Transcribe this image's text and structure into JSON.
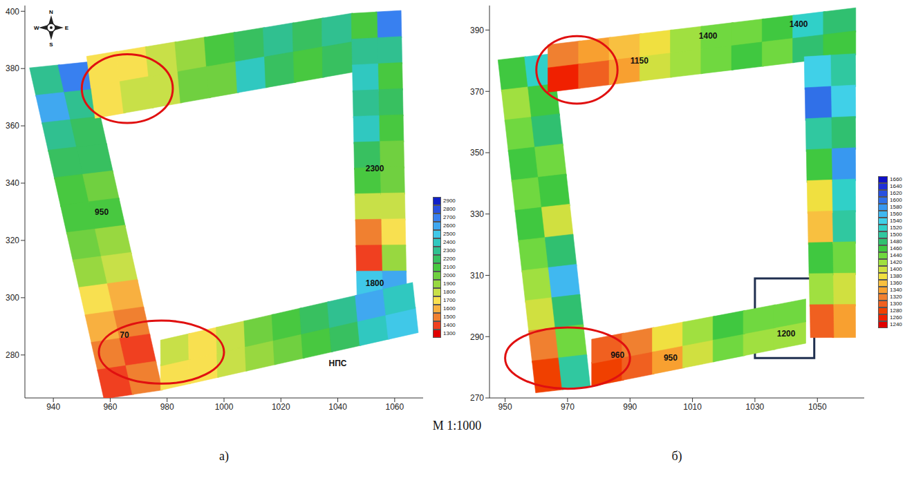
{
  "scale_label": "M 1:1000",
  "chart_data": [
    {
      "type": "heatmap",
      "label": "а)",
      "xlim": [
        930,
        1070
      ],
      "xticks": [
        940,
        960,
        980,
        1000,
        1020,
        1040,
        1060
      ],
      "ylim": [
        265,
        402
      ],
      "yticks": [
        280,
        300,
        320,
        340,
        360,
        380,
        400
      ],
      "compass": [
        "N",
        "E",
        "S",
        "W"
      ],
      "colorbar": {
        "range": [
          1300,
          2900
        ],
        "ticks": [
          1300,
          1400,
          1500,
          1600,
          1700,
          1800,
          1900,
          2000,
          2100,
          2200,
          2300,
          2400,
          2500,
          2600,
          2700,
          2800,
          2900
        ],
        "colors": [
          "#e00000",
          "#f04020",
          "#f08030",
          "#f8b040",
          "#f8e050",
          "#c8e048",
          "#98d840",
          "#70d040",
          "#48c840",
          "#38c060",
          "#30c090",
          "#30c8c0",
          "#40c8e8",
          "#40a8f0",
          "#3880f0",
          "#2850e0",
          "#1020c8"
        ]
      },
      "strips": [
        {
          "outer": [
            [
              932,
              380
            ],
            [
              958,
              265
            ]
          ],
          "inner": [
            [
              952,
              382
            ],
            [
              978,
              268
            ]
          ],
          "cells": [
            [
              2300,
              2600,
              2300,
              2200,
              2100,
              2100,
              2000,
              1900,
              1700,
              1600,
              1500,
              1400
            ],
            [
              2700,
              2300,
              2200,
              2200,
              2000,
              2100,
              1900,
              1800,
              1600,
              1500,
              1400,
              1500
            ]
          ]
        },
        {
          "outer": [
            [
              952,
              384
            ],
            [
              1045,
              399
            ]
          ],
          "inner": [
            [
              955,
              363
            ],
            [
              1045,
              379
            ]
          ],
          "cells": [
            [
              1700,
              1700,
              1800,
              1900,
              2100,
              2200,
              2300,
              2200,
              2300
            ],
            [
              1700,
              1800,
              1800,
              2000,
              2000,
              2400,
              2200,
              2100,
              2200
            ]
          ]
        },
        {
          "outer": [
            [
              1062,
              400
            ],
            [
              1064,
              300
            ]
          ],
          "inner": [
            [
              1045,
              399
            ],
            [
              1047,
              300
            ]
          ],
          "cells": [
            [
              2700,
              2300,
              2100,
              2200,
              2100,
              2000,
              2000,
              1800,
              1700,
              1900,
              2600
            ],
            [
              2100,
              2300,
              2400,
              2300,
              2400,
              2200,
              2100,
              1800,
              1500,
              1400,
              2500
            ]
          ]
        },
        {
          "outer": [
            [
              978,
              268
            ],
            [
              1068,
              288
            ]
          ],
          "inner": [
            [
              978,
              285
            ],
            [
              1066,
              305
            ]
          ],
          "cells": [
            [
              1700,
              1700,
              1800,
              1900,
              2000,
              2100,
              2200,
              2400,
              2500
            ],
            [
              1800,
              1700,
              1800,
              2000,
              2100,
              2200,
              2300,
              2600,
              2400
            ]
          ]
        }
      ],
      "annotations": [
        {
          "x": 957,
          "y": 330,
          "text": "950"
        },
        {
          "x": 965,
          "y": 287,
          "text": "70"
        },
        {
          "x": 1053,
          "y": 345,
          "text": "2300"
        },
        {
          "x": 1053,
          "y": 305,
          "text": "1800"
        },
        {
          "x": 1040,
          "y": 277,
          "text": "НПС"
        }
      ],
      "highlights": [
        {
          "shape": "ellipse",
          "x": 966,
          "y": 373,
          "rx": 16,
          "ry": 12,
          "color": "#e01010"
        },
        {
          "shape": "ellipse",
          "x": 978,
          "y": 281,
          "rx": 22,
          "ry": 11,
          "color": "#e01010"
        }
      ]
    },
    {
      "type": "heatmap",
      "label": "б)",
      "xlim": [
        945,
        1065
      ],
      "xticks": [
        950,
        970,
        990,
        1010,
        1030,
        1050
      ],
      "ylim": [
        270,
        398
      ],
      "yticks": [
        270,
        290,
        310,
        330,
        350,
        370,
        390
      ],
      "colorbar": {
        "range": [
          1240,
          1660
        ],
        "ticks": [
          1240,
          1260,
          1280,
          1300,
          1320,
          1340,
          1360,
          1380,
          1400,
          1420,
          1440,
          1460,
          1480,
          1500,
          1520,
          1540,
          1560,
          1580,
          1600,
          1620,
          1640,
          1660
        ],
        "colors": [
          "#e00000",
          "#f02000",
          "#f04000",
          "#f06020",
          "#f08030",
          "#f8a030",
          "#f8c040",
          "#f0e040",
          "#d0e040",
          "#a0e040",
          "#70d840",
          "#40c840",
          "#30c070",
          "#30c8a0",
          "#30d0c8",
          "#40d0e8",
          "#40b8f0",
          "#3898f0",
          "#3070e8",
          "#2850e0",
          "#2030d8",
          "#1010c8"
        ]
      },
      "strips": [
        {
          "outer": [
            [
              948,
              380
            ],
            [
              960,
              272
            ]
          ],
          "inner": [
            [
              965,
              382
            ],
            [
              977,
              274
            ]
          ],
          "cells": [
            [
              1460,
              1420,
              1440,
              1460,
              1440,
              1460,
              1440,
              1420,
              1400,
              1320,
              1280
            ],
            [
              1520,
              1460,
              1480,
              1440,
              1460,
              1400,
              1480,
              1560,
              1480,
              1440,
              1500
            ]
          ]
        },
        {
          "outer": [
            [
              964,
              385
            ],
            [
              1062,
              397
            ]
          ],
          "inner": [
            [
              964,
              370
            ],
            [
              1062,
              382
            ]
          ],
          "cells": [
            [
              1320,
              1340,
              1360,
              1380,
              1420,
              1440,
              1440,
              1460,
              1520,
              1480
            ],
            [
              1260,
              1300,
              1340,
              1400,
              1420,
              1440,
              1460,
              1440,
              1480,
              1460
            ]
          ]
        },
        {
          "outer": [
            [
              1062,
              382
            ],
            [
              1062,
              290
            ]
          ],
          "inner": [
            [
              1046,
              381
            ],
            [
              1048,
              290
            ]
          ],
          "cells": [
            [
              1500,
              1540,
              1480,
              1580,
              1520,
              1500,
              1440,
              1400,
              1340
            ],
            [
              1540,
              1600,
              1500,
              1460,
              1380,
              1360,
              1460,
              1420,
              1300
            ]
          ]
        },
        {
          "outer": [
            [
              978,
              274
            ],
            [
              1046,
              288
            ]
          ],
          "inner": [
            [
              978,
              289
            ],
            [
              1046,
              302
            ]
          ],
          "cells": [
            [
              1280,
              1300,
              1340,
              1400,
              1440,
              1420,
              1420
            ],
            [
              1300,
              1320,
              1380,
              1420,
              1460,
              1440,
              1440
            ]
          ]
        }
      ],
      "annotations": [
        {
          "x": 1044,
          "y": 392,
          "text": "1400"
        },
        {
          "x": 1015,
          "y": 388,
          "text": "1400"
        },
        {
          "x": 993,
          "y": 380,
          "text": "1150"
        },
        {
          "x": 1040,
          "y": 291,
          "text": "1200"
        },
        {
          "x": 986,
          "y": 284,
          "text": "960"
        },
        {
          "x": 1003,
          "y": 283,
          "text": "950"
        }
      ],
      "highlights": [
        {
          "shape": "ellipse",
          "x": 973,
          "y": 377,
          "rx": 13,
          "ry": 11,
          "color": "#e01010"
        },
        {
          "shape": "ellipse",
          "x": 970,
          "y": 283,
          "rx": 20,
          "ry": 10,
          "color": "#e01010"
        },
        {
          "shape": "rect",
          "x": [
            1030,
            1049
          ],
          "y": [
            283,
            309
          ],
          "color": "#1f2f4f"
        }
      ]
    }
  ]
}
